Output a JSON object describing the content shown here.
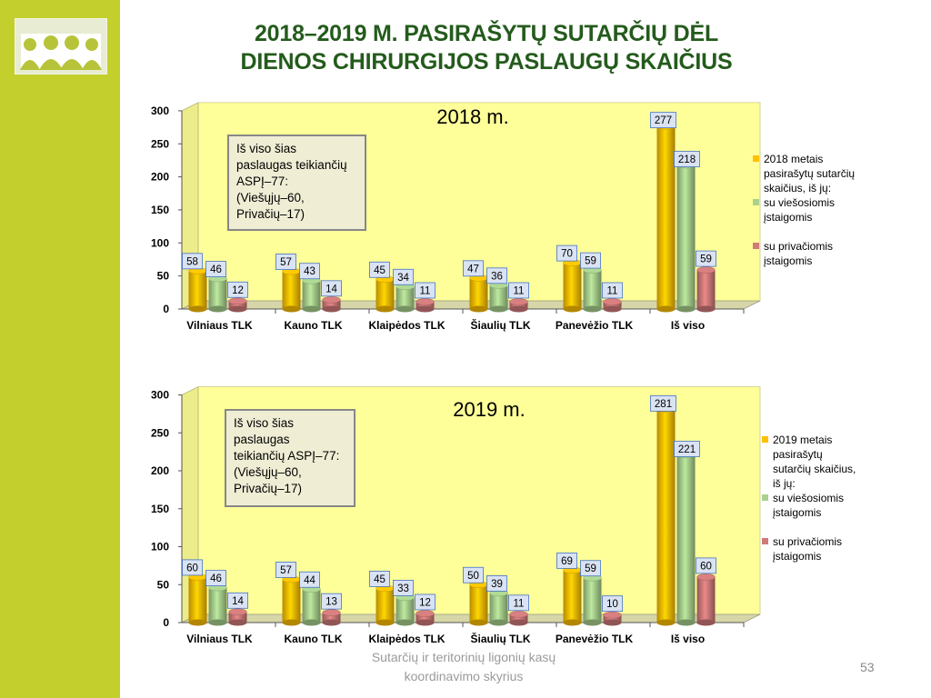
{
  "title": {
    "line1": "2018–2019 M. PASIRAŠYTŲ SUTARČIŲ DĖL",
    "line2": "DIENOS CHIRURGIJOS PASLAUGŲ SKAIČIUS"
  },
  "footer": {
    "line1": "Sutarčių ir teritorinių ligonių kasų",
    "line2": "koordinavimo skyrius"
  },
  "page_number": "53",
  "colors": {
    "sidebar": "#c2cf2c",
    "title": "#245b1c",
    "plot_background": "#ffff99",
    "series": [
      "#ffc000",
      "#a9d18e",
      "#d07a7a"
    ],
    "label_box": "#dae3f3"
  },
  "logo": {
    "icon": "group-of-people-icon"
  },
  "chart_data": [
    {
      "type": "bar",
      "title": "2018 m.",
      "categories": [
        "Vilniaus TLK",
        "Kauno TLK",
        "Klaipėdos TLK",
        "Šiaulių TLK",
        "Panevėžio TLK",
        "Iš viso"
      ],
      "series": [
        {
          "name": "2018 metais pasirašytų sutarčių skaičius, iš jų:",
          "values": [
            58,
            57,
            45,
            47,
            70,
            277
          ]
        },
        {
          "name": "su viešosiomis įstaigomis",
          "values": [
            46,
            43,
            34,
            36,
            59,
            218
          ]
        },
        {
          "name": "su privačiomis įstaigomis",
          "values": [
            12,
            14,
            11,
            11,
            11,
            59
          ]
        }
      ],
      "ylim": [
        0,
        300
      ],
      "yticks": [
        "0",
        "50",
        "100",
        "150",
        "200",
        "250",
        "300"
      ],
      "note": [
        "Iš viso šias",
        "paslaugas teikiančių",
        "ASPĮ–77:",
        "(Viešųjų–60,",
        "Privačių–17)"
      ],
      "legend_lines": [
        [
          "2018 metais",
          "pasirašytų sutarčių",
          "skaičius, iš jų:"
        ],
        [
          "su viešosiomis",
          "įstaigomis"
        ],
        [
          "su privačiomis",
          "įstaigomis"
        ]
      ]
    },
    {
      "type": "bar",
      "title": "2019 m.",
      "categories": [
        "Vilniaus TLK",
        "Kauno TLK",
        "Klaipėdos TLK",
        "Šiaulių TLK",
        "Panevėžio TLK",
        "Iš viso"
      ],
      "series": [
        {
          "name": "2019 metais pasirašytų sutarčių skaičius, iš jų:",
          "values": [
            60,
            57,
            45,
            50,
            69,
            281
          ]
        },
        {
          "name": "su viešosiomis įstaigomis",
          "values": [
            46,
            44,
            33,
            39,
            59,
            221
          ]
        },
        {
          "name": "su privačiomis įstaigomis",
          "values": [
            14,
            13,
            12,
            11,
            10,
            60
          ]
        }
      ],
      "ylim": [
        0,
        300
      ],
      "yticks": [
        "0",
        "50",
        "100",
        "150",
        "200",
        "250",
        "300"
      ],
      "note": [
        "Iš viso šias",
        "paslaugas",
        "teikiančių ASPĮ–77:",
        "(Viešųjų–60,",
        "Privačių–17)"
      ],
      "legend_lines": [
        [
          "2019 metais",
          "pasirašytų",
          "sutarčių skaičius,",
          "iš jų:"
        ],
        [
          "su viešosiomis",
          "įstaigomis"
        ],
        [
          "su privačiomis",
          "įstaigomis"
        ]
      ]
    }
  ]
}
